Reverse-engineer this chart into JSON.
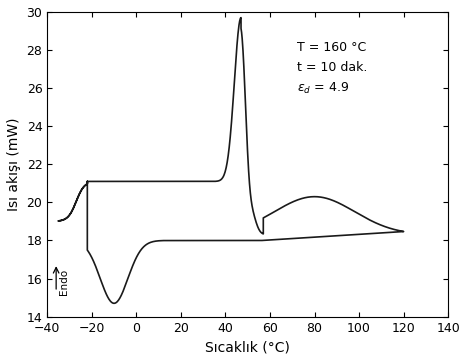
{
  "xlim": [
    -40,
    140
  ],
  "ylim": [
    14,
    30
  ],
  "xticks": [
    -40,
    -20,
    0,
    20,
    40,
    60,
    80,
    100,
    120,
    140
  ],
  "yticks": [
    14,
    16,
    18,
    20,
    22,
    24,
    26,
    28,
    30
  ],
  "xlabel": "Sıcaklık (°C)",
  "ylabel": "Isı akışı (mW)",
  "line_color": "#1a1a1a",
  "background_color": "#ffffff",
  "anno_x": 72,
  "anno_y": 28.5,
  "anno_text": "T = 160 °C\nt = 10 dak.\nε₂ = 4.9"
}
